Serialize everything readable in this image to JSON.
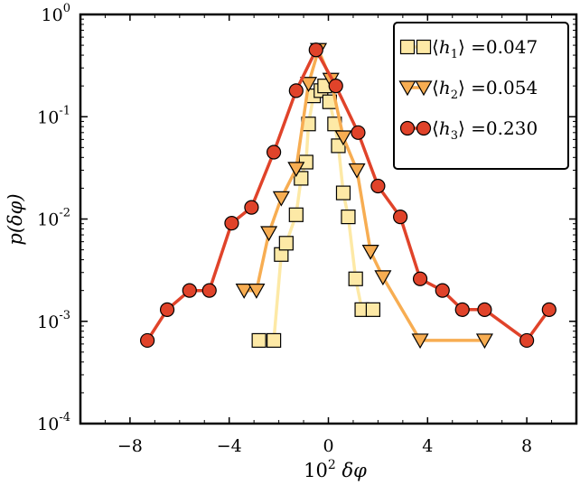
{
  "chart_data": {
    "type": "line",
    "title": "",
    "xlabel": "10² δφ",
    "ylabel": "p(δφ)",
    "xscale": "linear",
    "yscale": "log",
    "xlim": [
      -10,
      10
    ],
    "ylim": [
      0.0001,
      1
    ],
    "grid": false,
    "legend_position": "top-right",
    "x_ticks": [
      -8,
      -4,
      0,
      4,
      8
    ],
    "x_tick_labels": [
      "−8",
      "−4",
      "0",
      "4",
      "8"
    ],
    "y_ticks": [
      {
        "value": 1,
        "base": "10",
        "exp": "0"
      },
      {
        "value": 0.1,
        "base": "10",
        "exp": "-1"
      },
      {
        "value": 0.01,
        "base": "10",
        "exp": "-2"
      },
      {
        "value": 0.001,
        "base": "10",
        "exp": "-3"
      },
      {
        "value": 0.0001,
        "base": "10",
        "exp": "-4"
      }
    ],
    "series": [
      {
        "name": "h1",
        "legend_label": "⟨h₁⟩ =0.047",
        "legend_var": "h",
        "legend_sub": "1",
        "legend_value": "=0.047",
        "color": "#fde9a6",
        "marker": "square",
        "x": [
          -2.8,
          -2.2,
          -1.9,
          -1.7,
          -1.3,
          -1.1,
          -0.9,
          -0.8,
          -0.6,
          -0.3,
          -0.15,
          0.05,
          0.25,
          0.4,
          0.6,
          0.8,
          1.1,
          1.35,
          1.8
        ],
        "y": [
          0.00065,
          0.00065,
          0.0045,
          0.0058,
          0.011,
          0.025,
          0.036,
          0.085,
          0.16,
          0.18,
          0.2,
          0.14,
          0.085,
          0.052,
          0.018,
          0.0105,
          0.0026,
          0.0013,
          0.0013
        ]
      },
      {
        "name": "h2",
        "legend_label": "⟨h₂⟩ =0.054",
        "legend_var": "h",
        "legend_sub": "2",
        "legend_value": "=0.054",
        "color": "#f7ad52",
        "marker": "triangle-down",
        "x": [
          -3.4,
          -2.9,
          -2.4,
          -1.9,
          -1.3,
          -0.8,
          -0.4,
          0.1,
          0.6,
          1.15,
          1.7,
          2.2,
          3.7,
          6.3
        ],
        "y": [
          0.002,
          0.002,
          0.0073,
          0.016,
          0.031,
          0.21,
          0.45,
          0.23,
          0.063,
          0.03,
          0.0048,
          0.0027,
          0.00065,
          0.00065
        ]
      },
      {
        "name": "h3",
        "legend_label": "⟨h₃⟩ =0.230",
        "legend_var": "h",
        "legend_sub": "3",
        "legend_value": "=0.230",
        "color": "#e0432a",
        "marker": "circle",
        "x": [
          -7.3,
          -6.5,
          -5.6,
          -4.8,
          -3.9,
          -3.1,
          -2.2,
          -1.3,
          -0.5,
          0.3,
          1.2,
          2.0,
          2.9,
          3.7,
          4.6,
          5.4,
          6.3,
          8.0,
          8.9
        ],
        "y": [
          0.00065,
          0.0013,
          0.002,
          0.002,
          0.0091,
          0.013,
          0.045,
          0.18,
          0.45,
          0.2,
          0.07,
          0.021,
          0.0105,
          0.0026,
          0.002,
          0.0013,
          0.0013,
          0.00065,
          0.0013
        ]
      }
    ]
  }
}
